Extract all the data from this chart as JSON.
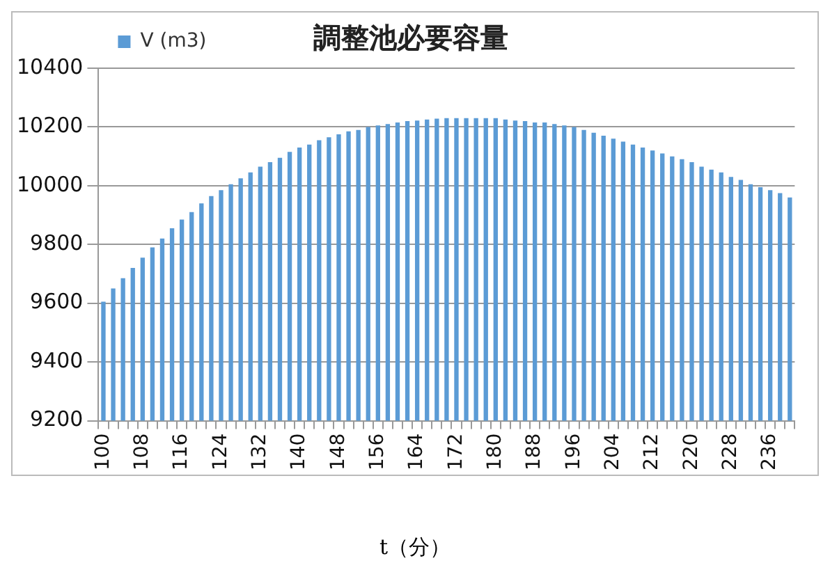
{
  "chart_data": {
    "type": "bar",
    "title": "調整池必要容量",
    "xlabel": "t（分）",
    "categories": [
      "100",
      null,
      null,
      null,
      "108",
      null,
      null,
      null,
      "116",
      null,
      null,
      null,
      "124",
      null,
      null,
      null,
      "132",
      null,
      null,
      null,
      "140",
      null,
      null,
      null,
      "148",
      null,
      null,
      null,
      "156",
      null,
      null,
      null,
      "164",
      null,
      null,
      null,
      "172",
      null,
      null,
      null,
      "180",
      null,
      null,
      null,
      "188",
      null,
      null,
      null,
      "196",
      null,
      null,
      null,
      "204",
      null,
      null,
      null,
      "212",
      null,
      null,
      null,
      "220",
      null,
      null,
      null,
      "228",
      null,
      null,
      null,
      "236",
      null,
      null
    ],
    "series": [
      {
        "name": "V (m3)",
        "color": "#5b9bd5",
        "values": [
          9605,
          9650,
          9685,
          9720,
          9755,
          9790,
          9820,
          9855,
          9885,
          9910,
          9940,
          9965,
          9985,
          10005,
          10025,
          10045,
          10065,
          10080,
          10095,
          10115,
          10130,
          10140,
          10155,
          10165,
          10175,
          10185,
          10190,
          10200,
          10205,
          10210,
          10215,
          10220,
          10222,
          10225,
          10228,
          10230,
          10230,
          10230,
          10230,
          10230,
          10230,
          10225,
          10222,
          10220,
          10215,
          10215,
          10210,
          10205,
          10200,
          10190,
          10180,
          10170,
          10160,
          10150,
          10140,
          10130,
          10120,
          10110,
          10100,
          10090,
          10080,
          10065,
          10055,
          10045,
          10030,
          10020,
          10005,
          9995,
          9985,
          9975,
          9960
        ]
      }
    ],
    "ylim": [
      9200,
      10400
    ],
    "yticks": [
      9200,
      9400,
      9600,
      9800,
      10000,
      10200,
      10400
    ],
    "grid": "y",
    "legend": "top left"
  }
}
